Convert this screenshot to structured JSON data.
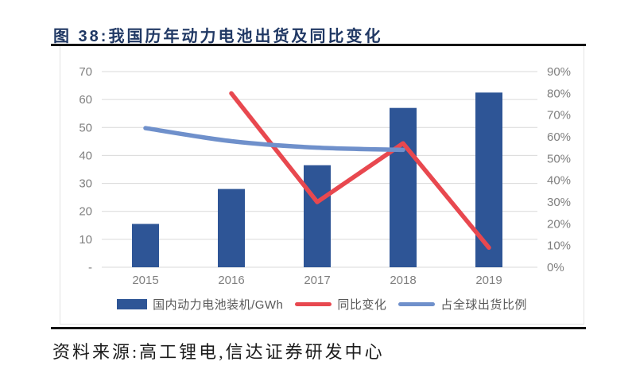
{
  "figure": {
    "title": "图 38:我国历年动力电池出货及同比变化",
    "source": "资料来源:高工锂电,信达证券研发中心"
  },
  "chart_data": {
    "type": "bar",
    "combo": "bar + line, dual axis",
    "title": "图 38:我国历年动力电池出货及同比变化",
    "categories": [
      "2015",
      "2016",
      "2017",
      "2018",
      "2019"
    ],
    "series": [
      {
        "name": "国内动力电池装机/GWh",
        "type": "bar",
        "axis": "left",
        "color": "#2E5596",
        "values": [
          15.5,
          28,
          36.5,
          57,
          62.5
        ]
      },
      {
        "name": "同比变化",
        "type": "line",
        "axis": "right",
        "color": "#E8484F",
        "smooth": false,
        "values": [
          null,
          80,
          30,
          57,
          9
        ]
      },
      {
        "name": "占全球出货比例",
        "type": "line",
        "axis": "right",
        "color": "#6F90CB",
        "smooth": true,
        "values": [
          64,
          58,
          55,
          54,
          null
        ]
      }
    ],
    "left_axis": {
      "min": 0,
      "max": 70,
      "step": 10,
      "tick_labels": [
        "-",
        "10",
        "20",
        "30",
        "40",
        "50",
        "60",
        "70"
      ]
    },
    "right_axis": {
      "min": 0,
      "max": 90,
      "step": 10,
      "tick_labels": [
        "0%",
        "10%",
        "20%",
        "30%",
        "40%",
        "50%",
        "60%",
        "70%",
        "80%",
        "90%"
      ]
    },
    "grid": true,
    "gridline_color": "#d9d9d9",
    "axis_text_color": "#7f7f7f",
    "legend_position": "bottom",
    "xlabel": "",
    "ylabel_left": "GWh",
    "ylabel_right": "%"
  }
}
